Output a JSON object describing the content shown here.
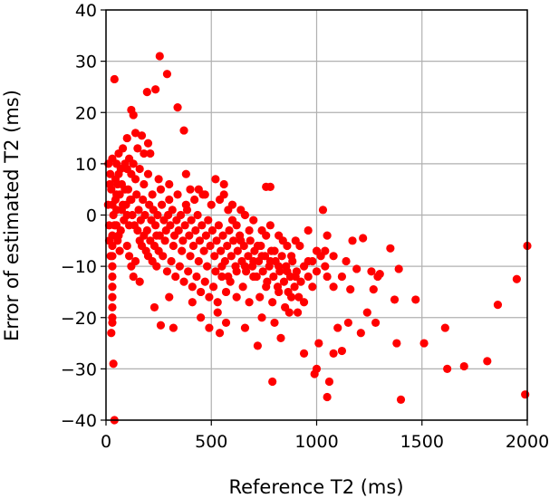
{
  "chart_data": {
    "type": "scatter",
    "title": "",
    "xlabel": "Reference T2 (ms)",
    "ylabel": "Error of estimated T2 (ms)",
    "xlim": [
      0,
      2000
    ],
    "ylim": [
      -40,
      40
    ],
    "xticks": [
      0,
      500,
      1000,
      1500,
      2000
    ],
    "yticks": [
      -40,
      -30,
      -20,
      -10,
      0,
      10,
      20,
      30,
      40
    ],
    "xtick_labels": [
      "0",
      "500",
      "1000",
      "1500",
      "2000"
    ],
    "ytick_labels": [
      "−40",
      "−30",
      "−20",
      "−10",
      "0",
      "10",
      "20",
      "30",
      "40"
    ],
    "grid": true,
    "marker_color": "#ff0000",
    "series": [
      {
        "points": [
          [
            255,
            31
          ],
          [
            40,
            26.5
          ],
          [
            290,
            27.5
          ],
          [
            195,
            24
          ],
          [
            235,
            24.5
          ],
          [
            340,
            21
          ],
          [
            120,
            20.5
          ],
          [
            130,
            19.5
          ],
          [
            370,
            16.5
          ],
          [
            100,
            15
          ],
          [
            140,
            16
          ],
          [
            170,
            15.5
          ],
          [
            200,
            14
          ],
          [
            80,
            13
          ],
          [
            150,
            13
          ],
          [
            180,
            12
          ],
          [
            60,
            12
          ],
          [
            110,
            11
          ],
          [
            210,
            12
          ],
          [
            90,
            10
          ],
          [
            130,
            10
          ],
          [
            160,
            9
          ],
          [
            30,
            11
          ],
          [
            50,
            10
          ],
          [
            70,
            9
          ],
          [
            120,
            8
          ],
          [
            200,
            8
          ],
          [
            250,
            7
          ],
          [
            300,
            6
          ],
          [
            380,
            8
          ],
          [
            400,
            5
          ],
          [
            520,
            7
          ],
          [
            560,
            6
          ],
          [
            760,
            5.5
          ],
          [
            780,
            5.5
          ],
          [
            440,
            5
          ],
          [
            470,
            4
          ],
          [
            600,
            2
          ],
          [
            640,
            1
          ],
          [
            1030,
            1
          ],
          [
            20,
            8
          ],
          [
            25,
            5
          ],
          [
            30,
            2
          ],
          [
            35,
            0
          ],
          [
            40,
            -2
          ],
          [
            45,
            3
          ],
          [
            55,
            6
          ],
          [
            65,
            4
          ],
          [
            75,
            1
          ],
          [
            85,
            -1
          ],
          [
            95,
            2
          ],
          [
            105,
            5
          ],
          [
            115,
            3
          ],
          [
            125,
            0
          ],
          [
            135,
            -2
          ],
          [
            145,
            4
          ],
          [
            155,
            1
          ],
          [
            165,
            -1
          ],
          [
            175,
            3
          ],
          [
            185,
            0
          ],
          [
            195,
            -3
          ],
          [
            205,
            2
          ],
          [
            215,
            -1
          ],
          [
            225,
            1
          ],
          [
            235,
            -2
          ],
          [
            245,
            0
          ],
          [
            255,
            -4
          ],
          [
            265,
            2
          ],
          [
            275,
            -1
          ],
          [
            285,
            -3
          ],
          [
            295,
            0
          ],
          [
            305,
            -2
          ],
          [
            315,
            1
          ],
          [
            325,
            -4
          ],
          [
            335,
            -1
          ],
          [
            345,
            -3
          ],
          [
            355,
            0
          ],
          [
            365,
            -5
          ],
          [
            375,
            -2
          ],
          [
            385,
            1
          ],
          [
            395,
            -4
          ],
          [
            405,
            -1
          ],
          [
            415,
            -6
          ],
          [
            425,
            -3
          ],
          [
            435,
            0
          ],
          [
            445,
            -5
          ],
          [
            455,
            -2
          ],
          [
            465,
            -7
          ],
          [
            475,
            -4
          ],
          [
            485,
            -1
          ],
          [
            495,
            -6
          ],
          [
            505,
            -3
          ],
          [
            515,
            -8
          ],
          [
            525,
            -5
          ],
          [
            535,
            -2
          ],
          [
            545,
            -7
          ],
          [
            555,
            -4
          ],
          [
            565,
            -9
          ],
          [
            575,
            -6
          ],
          [
            585,
            -3
          ],
          [
            595,
            -8
          ],
          [
            605,
            -5
          ],
          [
            615,
            -10
          ],
          [
            625,
            -7
          ],
          [
            635,
            -4
          ],
          [
            645,
            -9
          ],
          [
            655,
            -6
          ],
          [
            665,
            -11
          ],
          [
            675,
            -8
          ],
          [
            685,
            -5
          ],
          [
            695,
            -10
          ],
          [
            705,
            -7
          ],
          [
            715,
            -12
          ],
          [
            725,
            -9
          ],
          [
            735,
            -6
          ],
          [
            745,
            -11
          ],
          [
            755,
            -8
          ],
          [
            765,
            -13
          ],
          [
            775,
            -10
          ],
          [
            785,
            -7
          ],
          [
            795,
            -12
          ],
          [
            805,
            -9
          ],
          [
            815,
            -14
          ],
          [
            825,
            -11
          ],
          [
            835,
            -8
          ],
          [
            845,
            -13
          ],
          [
            855,
            -10
          ],
          [
            865,
            -15
          ],
          [
            875,
            -12
          ],
          [
            885,
            -9
          ],
          [
            895,
            -14
          ],
          [
            905,
            -11
          ],
          [
            915,
            -16
          ],
          [
            925,
            -13
          ],
          [
            940,
            -10
          ],
          [
            960,
            -12
          ],
          [
            980,
            -9
          ],
          [
            1000,
            -11
          ],
          [
            1020,
            -8
          ],
          [
            1050,
            -12
          ],
          [
            1080,
            -14
          ],
          [
            150,
            -3
          ],
          [
            160,
            -5
          ],
          [
            170,
            -6
          ],
          [
            180,
            -4
          ],
          [
            190,
            -7
          ],
          [
            200,
            -8
          ],
          [
            210,
            -5
          ],
          [
            220,
            -9
          ],
          [
            230,
            -6
          ],
          [
            240,
            -10
          ],
          [
            250,
            -7
          ],
          [
            270,
            -8
          ],
          [
            290,
            -11
          ],
          [
            310,
            -9
          ],
          [
            330,
            -12
          ],
          [
            350,
            -10
          ],
          [
            370,
            -13
          ],
          [
            390,
            -11
          ],
          [
            410,
            -14
          ],
          [
            430,
            -12
          ],
          [
            450,
            -15
          ],
          [
            470,
            -13
          ],
          [
            490,
            -16
          ],
          [
            510,
            -14
          ],
          [
            530,
            -17
          ],
          [
            550,
            -12
          ],
          [
            570,
            -15
          ],
          [
            590,
            -13
          ],
          [
            620,
            -16
          ],
          [
            650,
            -14
          ],
          [
            680,
            -17
          ],
          [
            700,
            -12
          ],
          [
            730,
            -16
          ],
          [
            760,
            -14
          ],
          [
            790,
            -17
          ],
          [
            820,
            -15
          ],
          [
            850,
            -18
          ],
          [
            880,
            -16
          ],
          [
            910,
            -19
          ],
          [
            940,
            -17
          ],
          [
            30,
            -4
          ],
          [
            30,
            -6
          ],
          [
            30,
            -8
          ],
          [
            30,
            -10
          ],
          [
            30,
            -12
          ],
          [
            30,
            -14
          ],
          [
            30,
            -16
          ],
          [
            30,
            -18
          ],
          [
            30,
            -20
          ],
          [
            30,
            -21
          ],
          [
            25,
            -23
          ],
          [
            35,
            -29
          ],
          [
            40,
            -40
          ],
          [
            100,
            -6
          ],
          [
            110,
            -8
          ],
          [
            120,
            -10
          ],
          [
            130,
            -12
          ],
          [
            140,
            -9
          ],
          [
            160,
            -13
          ],
          [
            230,
            -18
          ],
          [
            260,
            -21.5
          ],
          [
            300,
            -16
          ],
          [
            320,
            -22
          ],
          [
            410,
            -17
          ],
          [
            450,
            -20
          ],
          [
            490,
            -22
          ],
          [
            530,
            -19
          ],
          [
            540,
            -23
          ],
          [
            570,
            -21
          ],
          [
            660,
            -22
          ],
          [
            720,
            -25.5
          ],
          [
            740,
            -20
          ],
          [
            790,
            -32.5
          ],
          [
            800,
            -21
          ],
          [
            830,
            -24
          ],
          [
            870,
            -19
          ],
          [
            940,
            -27
          ],
          [
            990,
            -31
          ],
          [
            1000,
            -30
          ],
          [
            1010,
            -25
          ],
          [
            1050,
            -35.5
          ],
          [
            1060,
            -32.5
          ],
          [
            1080,
            -27
          ],
          [
            1100,
            -22
          ],
          [
            1120,
            -26.5
          ],
          [
            1150,
            -21
          ],
          [
            1160,
            -14.5
          ],
          [
            1170,
            -5
          ],
          [
            1190,
            -10.5
          ],
          [
            1210,
            -23
          ],
          [
            1220,
            -4.5
          ],
          [
            1240,
            -19
          ],
          [
            1260,
            -11
          ],
          [
            1270,
            -14.5
          ],
          [
            1280,
            -21
          ],
          [
            1290,
            -12
          ],
          [
            1300,
            -11.5
          ],
          [
            1350,
            -6.5
          ],
          [
            1370,
            -16.5
          ],
          [
            1380,
            -25
          ],
          [
            1390,
            -10.5
          ],
          [
            1400,
            -36
          ],
          [
            1470,
            -16.5
          ],
          [
            1510,
            -25
          ],
          [
            1610,
            -22
          ],
          [
            1620,
            -30
          ],
          [
            1700,
            -29.5
          ],
          [
            1810,
            -28.5
          ],
          [
            1860,
            -17.5
          ],
          [
            1950,
            -12.5
          ],
          [
            2000,
            -6
          ],
          [
            1990,
            -35
          ],
          [
            1050,
            -4
          ],
          [
            1040,
            -7
          ],
          [
            960,
            -3
          ],
          [
            900,
            -5
          ],
          [
            860,
            -6
          ],
          [
            820,
            -4
          ],
          [
            780,
            -2
          ],
          [
            740,
            -3
          ],
          [
            700,
            -1
          ],
          [
            660,
            0
          ],
          [
            620,
            -2
          ],
          [
            580,
            1
          ],
          [
            540,
            3
          ],
          [
            500,
            2
          ],
          [
            460,
            4
          ],
          [
            420,
            3
          ],
          [
            380,
            2
          ],
          [
            340,
            4
          ],
          [
            300,
            3
          ],
          [
            260,
            5
          ],
          [
            220,
            4
          ],
          [
            180,
            6
          ],
          [
            140,
            7
          ],
          [
            100,
            9
          ],
          [
            60,
            8
          ],
          [
            50,
            4
          ],
          [
            50,
            1
          ],
          [
            50,
            -2
          ],
          [
            60,
            -4
          ],
          [
            70,
            -3
          ],
          [
            80,
            2
          ],
          [
            90,
            5
          ],
          [
            100,
            0
          ],
          [
            110,
            -2
          ],
          [
            120,
            3
          ],
          [
            10,
            2
          ],
          [
            15,
            -2
          ],
          [
            15,
            -5
          ],
          [
            18,
            6
          ],
          [
            22,
            -8
          ],
          [
            12,
            10
          ],
          [
            45,
            7
          ],
          [
            55,
            -5
          ],
          [
            65,
            -7
          ],
          [
            75,
            6
          ],
          [
            560,
            4
          ],
          [
            600,
            -1
          ],
          [
            640,
            -5
          ],
          [
            680,
            -3
          ],
          [
            720,
            -6
          ],
          [
            760,
            -4
          ],
          [
            800,
            -7
          ],
          [
            840,
            -5
          ],
          [
            880,
            -8
          ],
          [
            920,
            -6
          ],
          [
            960,
            -9
          ],
          [
            1000,
            -7
          ],
          [
            1040,
            -10
          ],
          [
            1080,
            -8
          ],
          [
            1120,
            -12
          ],
          [
            1140,
            -9
          ],
          [
            980,
            -14
          ],
          [
            900,
            -12
          ],
          [
            860,
            -11
          ],
          [
            820,
            -10
          ],
          [
            780,
            -9
          ],
          [
            740,
            -8
          ],
          [
            700,
            -9
          ],
          [
            660,
            -10
          ],
          [
            620,
            -11
          ],
          [
            580,
            -12
          ],
          [
            550,
            -10
          ],
          [
            520,
            -11
          ],
          [
            480,
            -10
          ],
          [
            440,
            -9
          ],
          [
            400,
            -8
          ],
          [
            360,
            -7
          ],
          [
            320,
            -6
          ],
          [
            280,
            -5
          ],
          [
            240,
            -4
          ]
        ]
      }
    ]
  }
}
